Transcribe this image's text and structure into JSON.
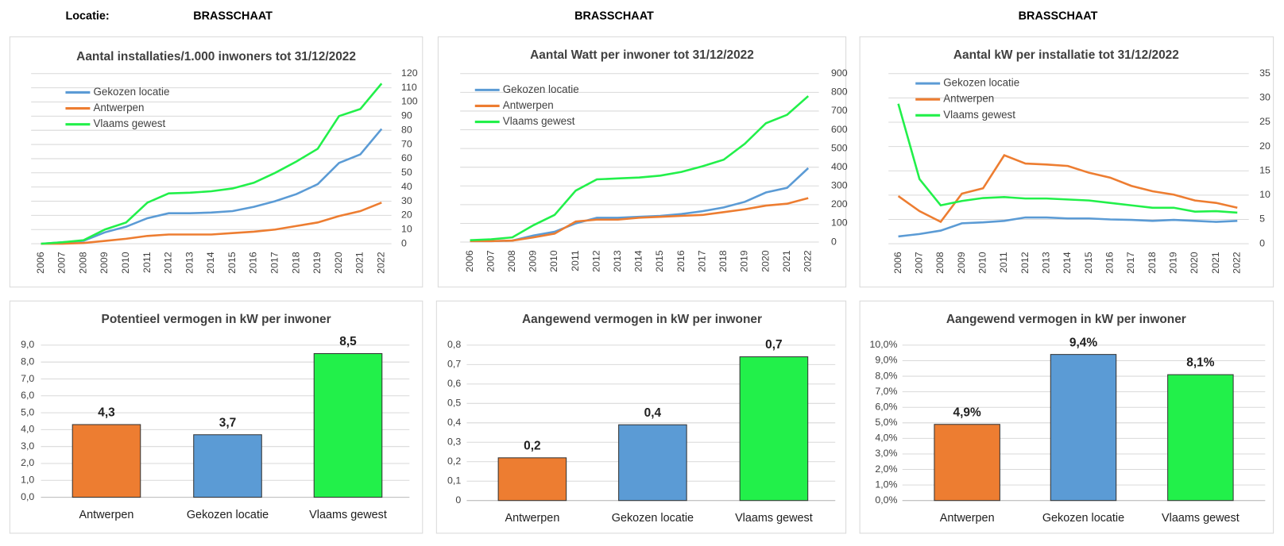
{
  "header": {
    "label": "Locatie:",
    "locations": [
      "BRASSCHAAT",
      "BRASSCHAAT",
      "BRASSCHAAT"
    ]
  },
  "chart_data": [
    {
      "type": "line",
      "title": "Aantal installaties/1.000  inwoners tot 31/12/2022",
      "categories": [
        "2006",
        "2007",
        "2008",
        "2009",
        "2010",
        "2011",
        "2012",
        "2013",
        "2014",
        "2015",
        "2016",
        "2017",
        "2018",
        "2019",
        "2020",
        "2021",
        "2022"
      ],
      "series": [
        {
          "name": "Gekozen locatie",
          "color": "#5B9BD5",
          "values": [
            0,
            1,
            2,
            8,
            12,
            18,
            21.5,
            21.5,
            22,
            23,
            26,
            30,
            35,
            42,
            57,
            63,
            81
          ]
        },
        {
          "name": "Antwerpen",
          "color": "#ED7D31",
          "values": [
            0,
            0,
            0.5,
            2,
            3.5,
            5.5,
            6.5,
            6.5,
            6.5,
            7.5,
            8.5,
            10,
            12.5,
            15,
            19.5,
            23,
            29
          ]
        },
        {
          "name": "Vlaams gewest",
          "color": "#22F04A",
          "values": [
            0,
            1,
            2.5,
            10,
            15,
            29,
            35.5,
            36,
            37,
            39,
            43,
            50,
            58,
            67,
            90,
            95,
            113
          ]
        }
      ],
      "ylim": [
        0,
        120
      ],
      "yticks": [
        0,
        10,
        20,
        30,
        40,
        50,
        60,
        70,
        80,
        90,
        100,
        110,
        120
      ],
      "y_axis_side": "right",
      "grid": true,
      "legend": "upper left"
    },
    {
      "type": "line",
      "title": "Aantal Watt per inwoner  tot 31/12/2022",
      "categories": [
        "2006",
        "2007",
        "2008",
        "2009",
        "2010",
        "2011",
        "2012",
        "2013",
        "2014",
        "2015",
        "2016",
        "2017",
        "2018",
        "2019",
        "2020",
        "2021",
        "2022"
      ],
      "series": [
        {
          "name": "Gekozen locatie",
          "color": "#5B9BD5",
          "values": [
            5,
            5,
            8,
            35,
            55,
            100,
            130,
            130,
            135,
            140,
            150,
            165,
            185,
            215,
            265,
            290,
            395
          ]
        },
        {
          "name": "Antwerpen",
          "color": "#ED7D31",
          "values": [
            5,
            5,
            8,
            25,
            45,
            110,
            120,
            120,
            130,
            135,
            140,
            145,
            160,
            175,
            195,
            205,
            235
          ]
        },
        {
          "name": "Vlaams gewest",
          "color": "#22F04A",
          "values": [
            10,
            15,
            25,
            90,
            145,
            275,
            335,
            340,
            345,
            355,
            375,
            405,
            440,
            525,
            635,
            680,
            780
          ]
        }
      ],
      "ylim": [
        0,
        900
      ],
      "yticks": [
        0,
        100,
        200,
        300,
        400,
        500,
        600,
        700,
        800,
        900
      ],
      "y_axis_side": "right",
      "grid": true,
      "legend": "upper left"
    },
    {
      "type": "line",
      "title": "Aantal kW per installatie  tot 31/12/2022",
      "categories": [
        "2006",
        "2007",
        "2008",
        "2009",
        "2010",
        "2011",
        "2012",
        "2013",
        "2014",
        "2015",
        "2016",
        "2017",
        "2018",
        "2019",
        "2020",
        "2021",
        "2022"
      ],
      "series": [
        {
          "name": "Gekozen locatie",
          "color": "#5B9BD5",
          "values": [
            1.5,
            2,
            2.7,
            4.2,
            4.4,
            4.7,
            5.4,
            5.4,
            5.2,
            5.2,
            5,
            4.9,
            4.7,
            4.9,
            4.7,
            4.5,
            4.7
          ]
        },
        {
          "name": "Antwerpen",
          "color": "#ED7D31",
          "values": [
            9.8,
            6.7,
            4.5,
            10.3,
            11.4,
            18.2,
            16.5,
            16.3,
            16,
            14.6,
            13.6,
            11.9,
            10.8,
            10.1,
            8.9,
            8.4,
            7.4
          ]
        },
        {
          "name": "Vlaams gewest",
          "color": "#22F04A",
          "values": [
            28.8,
            13.3,
            7.9,
            8.8,
            9.4,
            9.6,
            9.3,
            9.3,
            9.1,
            8.9,
            8.4,
            7.9,
            7.4,
            7.4,
            6.6,
            6.7,
            6.4
          ]
        }
      ],
      "ylim": [
        0,
        35
      ],
      "yticks": [
        0,
        5,
        10,
        15,
        20,
        25,
        30,
        35
      ],
      "y_axis_side": "right",
      "grid": true,
      "legend": "upper left"
    },
    {
      "type": "bar",
      "title": "Potentieel vermogen in kW per inwoner",
      "categories": [
        "Antwerpen",
        "Gekozen locatie",
        "Vlaams gewest"
      ],
      "values": [
        4.3,
        3.7,
        8.5
      ],
      "value_labels": [
        "4,3",
        "3,7",
        "8,5"
      ],
      "colors": [
        "#ED7D31",
        "#5B9BD5",
        "#22F04A"
      ],
      "ylim": [
        0,
        9
      ],
      "yticks": [
        {
          "value": 0,
          "label": "0,0"
        },
        {
          "value": 1,
          "label": "1,0"
        },
        {
          "value": 2,
          "label": "2,0"
        },
        {
          "value": 3,
          "label": "3,0"
        },
        {
          "value": 4,
          "label": "4,0"
        },
        {
          "value": 5,
          "label": "5,0"
        },
        {
          "value": 6,
          "label": "6,0"
        },
        {
          "value": 7,
          "label": "7,0"
        },
        {
          "value": 8,
          "label": "8,0"
        },
        {
          "value": 9,
          "label": "9,0"
        }
      ],
      "y_axis_side": "left",
      "grid": true
    },
    {
      "type": "bar",
      "title": "Aangewend vermogen in kW per inwoner",
      "categories": [
        "Antwerpen",
        "Gekozen locatie",
        "Vlaams gewest"
      ],
      "values": [
        0.22,
        0.39,
        0.74
      ],
      "value_labels": [
        "0,2",
        "0,4",
        "0,7"
      ],
      "colors": [
        "#ED7D31",
        "#5B9BD5",
        "#22F04A"
      ],
      "ylim": [
        0,
        0.8
      ],
      "yticks": [
        {
          "value": 0,
          "label": "0"
        },
        {
          "value": 0.1,
          "label": "0,1"
        },
        {
          "value": 0.2,
          "label": "0,2"
        },
        {
          "value": 0.3,
          "label": "0,3"
        },
        {
          "value": 0.4,
          "label": "0,4"
        },
        {
          "value": 0.5,
          "label": "0,5"
        },
        {
          "value": 0.6,
          "label": "0,6"
        },
        {
          "value": 0.7,
          "label": "0,7"
        },
        {
          "value": 0.8,
          "label": "0,8"
        }
      ],
      "y_axis_side": "left",
      "grid": true
    },
    {
      "type": "bar",
      "title": "Aangewend vermogen in kW per inwoner",
      "categories": [
        "Antwerpen",
        "Gekozen locatie",
        "Vlaams gewest"
      ],
      "values": [
        4.9,
        9.4,
        8.1
      ],
      "value_labels": [
        "4,9%",
        "9,4%",
        "8,1%"
      ],
      "colors": [
        "#ED7D31",
        "#5B9BD5",
        "#22F04A"
      ],
      "ylim": [
        0,
        10
      ],
      "yticks": [
        {
          "value": 0,
          "label": "0,0%"
        },
        {
          "value": 1,
          "label": "1,0%"
        },
        {
          "value": 2,
          "label": "2,0%"
        },
        {
          "value": 3,
          "label": "3,0%"
        },
        {
          "value": 4,
          "label": "4,0%"
        },
        {
          "value": 5,
          "label": "5,0%"
        },
        {
          "value": 6,
          "label": "6,0%"
        },
        {
          "value": 7,
          "label": "7,0%"
        },
        {
          "value": 8,
          "label": "8,0%"
        },
        {
          "value": 9,
          "label": "9,0%"
        },
        {
          "value": 10,
          "label": "10,0%"
        }
      ],
      "y_axis_side": "left",
      "grid": true
    }
  ]
}
